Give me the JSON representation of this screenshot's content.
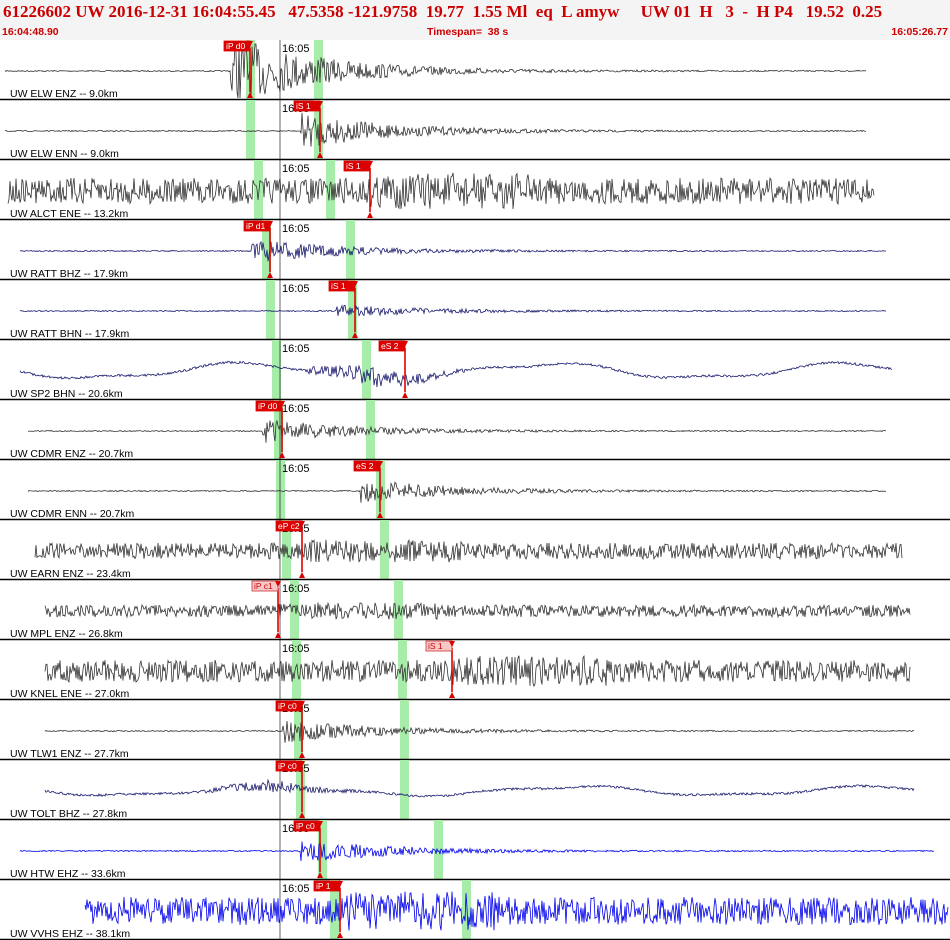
{
  "header": {
    "title": "61226602 UW 2016-12-31 16:04:55.45   47.5358 -121.9758  19.77  1.55 Ml  eq  L amyw     UW 01  H   3  -  H P4   19.52  0.25",
    "start_time": "16:04:48.90",
    "timespan": "Timespan=  38 s",
    "end_time": "16:05:26.77"
  },
  "colors": {
    "text_red": "#cc0000",
    "trace_gray": "#333333",
    "trace_navy": "#1a1a6e",
    "trace_blue": "#0000ee",
    "pick_red": "#dd0000",
    "pick_pink": "#f8c8c8",
    "window_green": "#a8ecaa",
    "divider": "#000000"
  },
  "tick_label": "16:05",
  "channels": [
    {
      "label": "UW ELW ENZ -- 9.0km",
      "color": "gray",
      "style": "burst",
      "amp": 6,
      "picks": [
        {
          "label": "iP d0",
          "style": "red"
        }
      ]
    },
    {
      "label": "UW ELW ENN -- 9.0km",
      "color": "gray",
      "style": "burst",
      "amp": 3,
      "picks": [
        {
          "label": "iS 1",
          "style": "red"
        }
      ]
    },
    {
      "label": "UW ALCT ENE -- 13.2km",
      "color": "gray",
      "style": "noise",
      "amp": 13,
      "picks": [
        {
          "label": "iS 1",
          "style": "red"
        }
      ]
    },
    {
      "label": "UW RATT BHZ -- 17.9km",
      "color": "navy",
      "style": "burst",
      "amp": 2,
      "picks": [
        {
          "label": "iP d1",
          "style": "red"
        }
      ]
    },
    {
      "label": "UW RATT BHN -- 17.9km",
      "color": "navy",
      "style": "burst",
      "amp": 1,
      "picks": [
        {
          "label": "iS 1",
          "style": "red"
        }
      ]
    },
    {
      "label": "UW SP2 BHN -- 20.6km",
      "color": "navy",
      "style": "wave",
      "amp": 5,
      "picks": [
        {
          "label": "eS 2",
          "style": "red"
        }
      ]
    },
    {
      "label": "UW CDMR ENZ -- 20.7km",
      "color": "gray",
      "style": "burst",
      "amp": 2,
      "picks": [
        {
          "label": "iP d0",
          "style": "red"
        }
      ]
    },
    {
      "label": "UW CDMR ENN -- 20.7km",
      "color": "gray",
      "style": "burst",
      "amp": 2,
      "picks": [
        {
          "label": "eS 2",
          "style": "red"
        }
      ]
    },
    {
      "label": "UW EARN ENZ -- 23.4km",
      "color": "gray",
      "style": "noise",
      "amp": 8,
      "picks": [
        {
          "label": "eP c2",
          "style": "red"
        }
      ]
    },
    {
      "label": "UW MPL ENZ -- 26.8km",
      "color": "gray",
      "style": "noise",
      "amp": 6,
      "picks": [
        {
          "label": "iP c1",
          "style": "pink"
        }
      ]
    },
    {
      "label": "UW KNEL ENE -- 27.0km",
      "color": "gray",
      "style": "noise",
      "amp": 11,
      "picks": [
        {
          "label": "iS 1",
          "style": "pink"
        }
      ]
    },
    {
      "label": "UW TLW1 ENZ -- 27.7km",
      "color": "gray",
      "style": "burst",
      "amp": 2,
      "picks": [
        {
          "label": "iP c0",
          "style": "red"
        }
      ]
    },
    {
      "label": "UW TOLT BHZ -- 27.8km",
      "color": "navy",
      "style": "wave",
      "amp": 3,
      "picks": [
        {
          "label": "iP c0",
          "style": "red"
        }
      ]
    },
    {
      "label": "UW HTW EHZ -- 33.6km",
      "color": "blue",
      "style": "burst",
      "amp": 2,
      "picks": [
        {
          "label": "iP c0",
          "style": "red"
        }
      ]
    },
    {
      "label": "UW VVHS EHZ -- 38.1km",
      "color": "blue",
      "style": "noise",
      "amp": 14,
      "picks": [
        {
          "label": "iP 1",
          "style": "red"
        }
      ]
    }
  ]
}
